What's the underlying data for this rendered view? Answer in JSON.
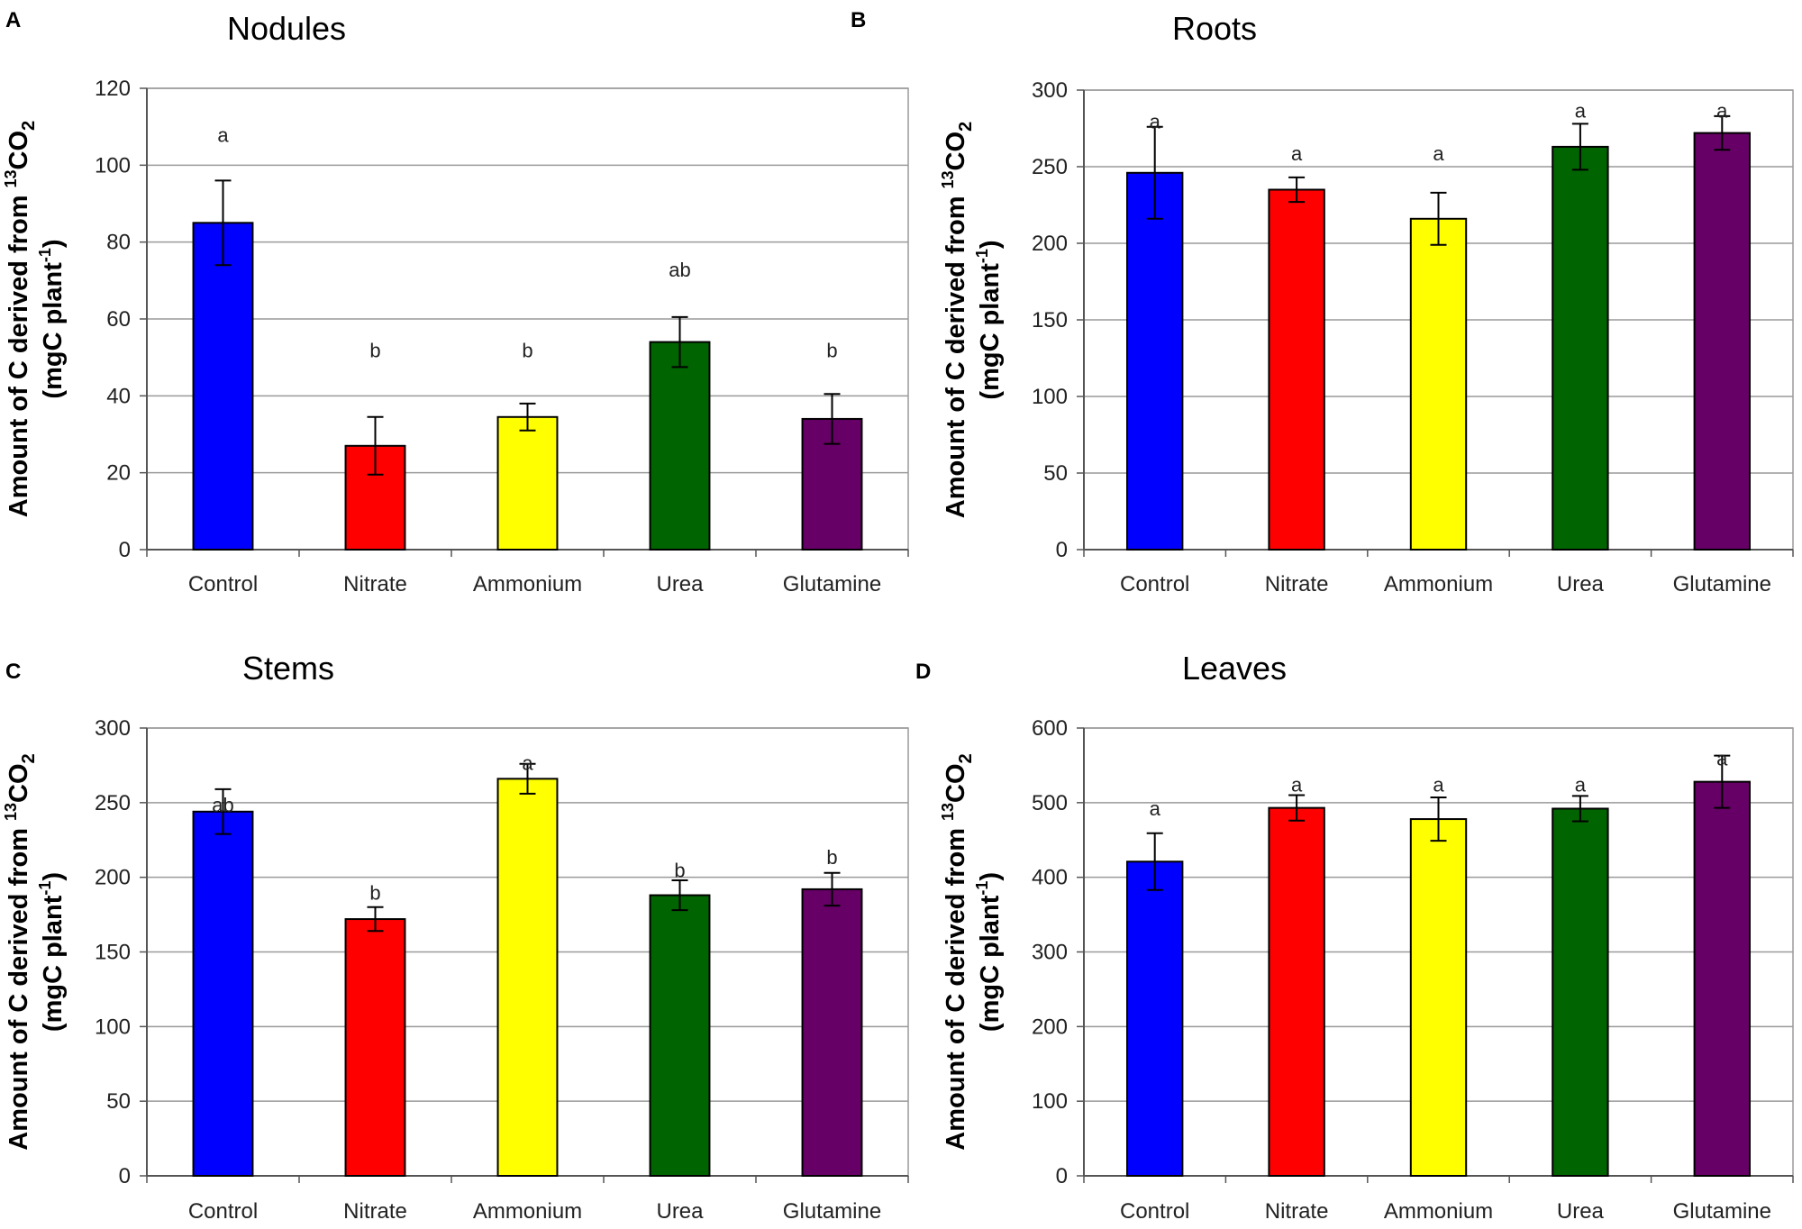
{
  "colors": {
    "Control": "#0000ff",
    "Nitrate": "#ff0000",
    "Ammonium": "#ffff00",
    "Urea": "#006400",
    "Glutamine": "#660066",
    "grid": "#9a9a9a",
    "axis": "#555555"
  },
  "chart_data": [
    {
      "type": "bar",
      "panel": "A",
      "title": "Nodules",
      "ylabel_line1_prefix": "Amount of C derived from ",
      "ylabel_sup": "13",
      "ylabel_co": "CO",
      "ylabel_sub": "2",
      "ylabel_line2_prefix": "(mgC plant",
      "ylabel_line2_sup": "-1",
      "ylabel_line2_suffix": ")",
      "categories": [
        "Control",
        "Nitrate",
        "Ammonium",
        "Urea",
        "Glutamine"
      ],
      "values": [
        85,
        27,
        34.5,
        54,
        34
      ],
      "errors": [
        11,
        7.5,
        3.5,
        6.5,
        6.5
      ],
      "significance": [
        "a",
        "b",
        "b",
        "ab",
        "b"
      ],
      "sig_positions": [
        106,
        50,
        50,
        71,
        50
      ],
      "ylim": [
        0,
        120
      ],
      "yticks": [
        "0",
        "20",
        "40",
        "60",
        "80",
        "100",
        "120"
      ]
    },
    {
      "type": "bar",
      "panel": "B",
      "title": "Roots",
      "ylabel_line1_prefix": "Amount of C derived from ",
      "ylabel_sup": "13",
      "ylabel_co": "CO",
      "ylabel_sub": "2",
      "ylabel_line2_prefix": "(mgC plant",
      "ylabel_line2_sup": "-1",
      "ylabel_line2_suffix": ")",
      "categories": [
        "Control",
        "Nitrate",
        "Ammonium",
        "Urea",
        "Glutamine"
      ],
      "values": [
        246,
        235,
        216,
        263,
        272
      ],
      "errors": [
        30,
        8,
        17,
        15,
        11
      ],
      "significance": [
        "a",
        "a",
        "a",
        "a",
        "a"
      ],
      "sig_positions": [
        275,
        254,
        254,
        282,
        282
      ],
      "ylim": [
        0,
        300
      ],
      "yticks": [
        "0",
        "50",
        "100",
        "150",
        "200",
        "250",
        "300"
      ]
    },
    {
      "type": "bar",
      "panel": "C",
      "title": "Stems",
      "ylabel_line1_prefix": "Amount of C derived from ",
      "ylabel_sup": "13",
      "ylabel_co": "CO",
      "ylabel_sub": "2",
      "ylabel_line2_prefix": "(mgC plant",
      "ylabel_line2_sup": "-1",
      "ylabel_line2_suffix": ")",
      "categories": [
        "Control",
        "Nitrate",
        "Ammonium",
        "Urea",
        "Glutamine"
      ],
      "values": [
        244,
        172,
        266,
        188,
        192
      ],
      "errors": [
        15,
        8,
        10,
        10,
        11
      ],
      "significance": [
        "ab",
        "b",
        "a",
        "b",
        "b"
      ],
      "sig_positions": [
        244,
        185,
        272,
        200,
        209
      ],
      "ylim": [
        0,
        300
      ],
      "yticks": [
        "0",
        "50",
        "100",
        "150",
        "200",
        "250",
        "300"
      ]
    },
    {
      "type": "bar",
      "panel": "D",
      "title": "Leaves",
      "ylabel_line1_prefix": "Amount of C derived from ",
      "ylabel_sup": "13",
      "ylabel_co": "CO",
      "ylabel_sub": "2",
      "ylabel_line2_prefix": "(mgC plant",
      "ylabel_line2_sup": "-1",
      "ylabel_line2_suffix": ")",
      "categories": [
        "Control",
        "Nitrate",
        "Ammonium",
        "Urea",
        "Glutamine"
      ],
      "values": [
        421,
        493,
        478,
        492,
        528
      ],
      "errors": [
        38,
        17,
        29,
        17,
        35
      ],
      "significance": [
        "a",
        "a",
        "a",
        "a",
        "a"
      ],
      "sig_positions": [
        483,
        515,
        515,
        515,
        550
      ],
      "ylim": [
        0,
        600
      ],
      "yticks": [
        "0",
        "100",
        "200",
        "300",
        "400",
        "500",
        "600"
      ]
    }
  ]
}
